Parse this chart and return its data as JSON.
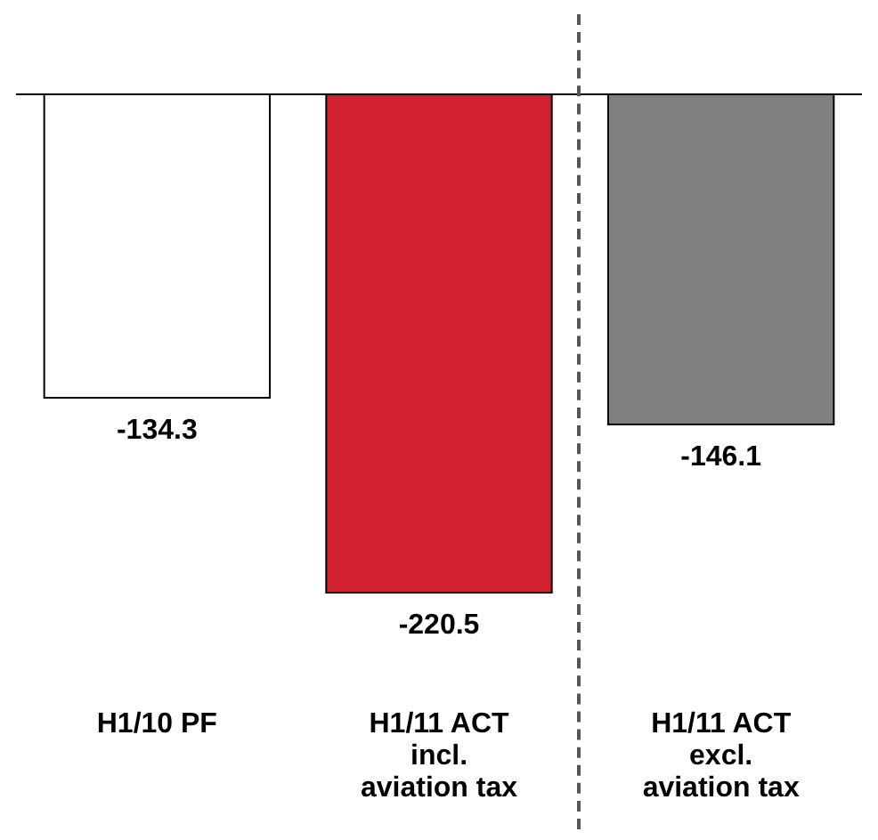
{
  "chart_data": {
    "type": "bar",
    "categories": [
      "H1/10 PF",
      "H1/11 ACT incl. aviation tax",
      "H1/11 ACT excl. aviation tax"
    ],
    "values": [
      -134.3,
      -220.5,
      -146.1
    ],
    "colors": [
      "#ffffff",
      "#d2202f",
      "#808080"
    ],
    "data_labels": true
  }
}
